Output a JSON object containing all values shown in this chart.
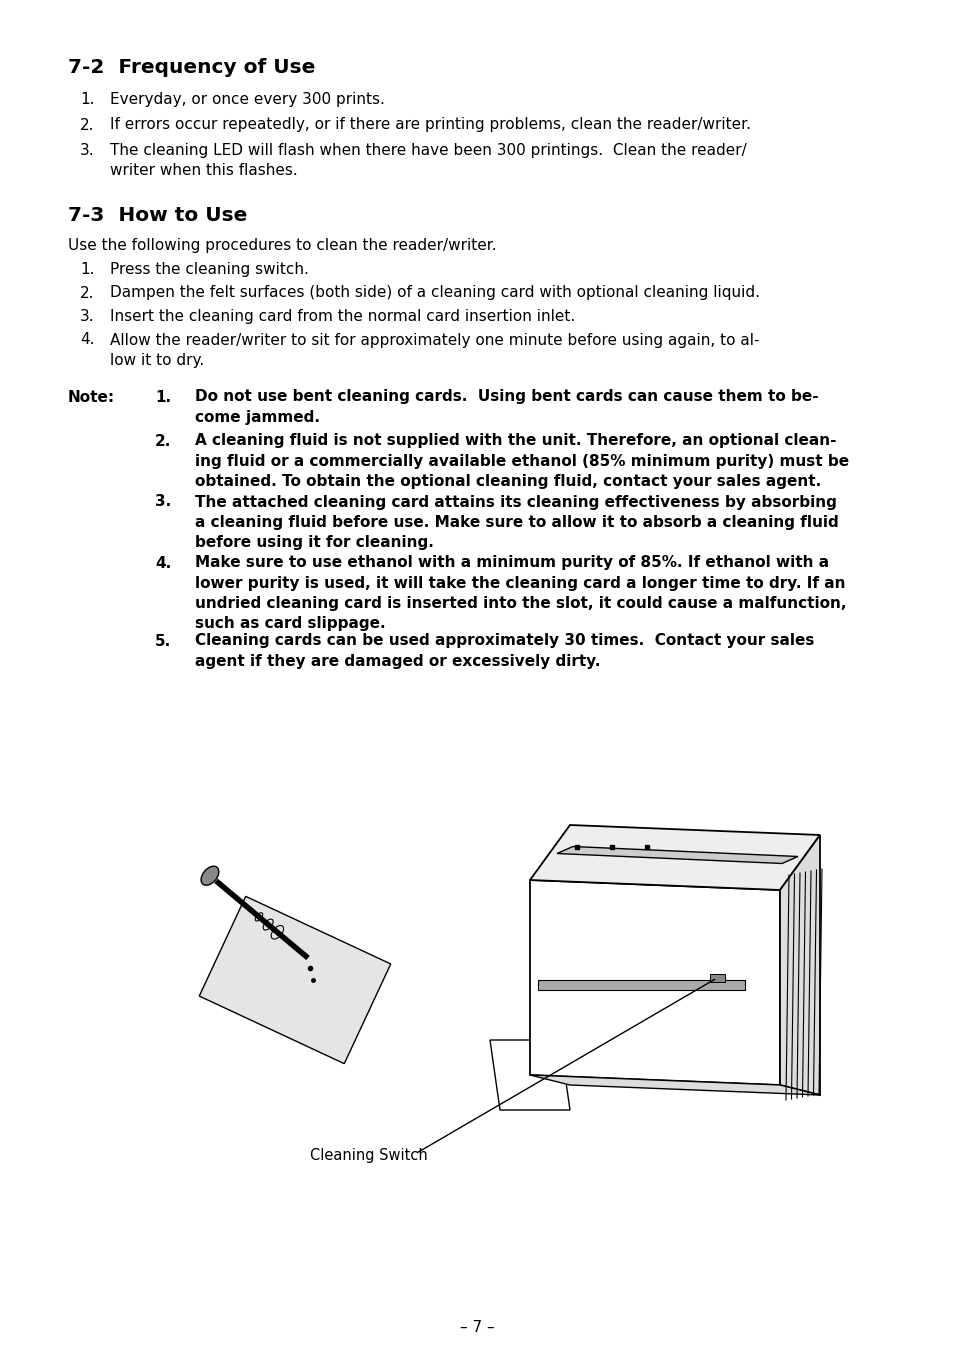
{
  "bg_color": "#ffffff",
  "page_number": "– 7 –",
  "section1_title": "7-2  Frequency of Use",
  "section1_items": [
    "Everyday, or once every 300 prints.",
    "If errors occur repeatedly, or if there are printing problems, clean the reader/writer.",
    "The cleaning LED will flash when there have been 300 printings.  Clean the reader/\nwriter when this flashes."
  ],
  "section2_title": "7-3  How to Use",
  "section2_intro": "Use the following procedures to clean the reader/writer.",
  "section2_items": [
    "Press the cleaning switch.",
    "Dampen the felt surfaces (both side) of a cleaning card with optional cleaning liquid.",
    "Insert the cleaning card from the normal card insertion inlet.",
    "Allow the reader/writer to sit for approximately one minute before using again, to al-\nlow it to dry."
  ],
  "note_label": "Note:",
  "note_items": [
    "Do not use bent cleaning cards.  Using bent cards can cause them to be-\ncome jammed.",
    "A cleaning fluid is not supplied with the unit. Therefore, an optional clean-\ning fluid or a commercially available ethanol (85% minimum purity) must be\nobtained. To obtain the optional cleaning fluid, contact your sales agent.",
    "The attached cleaning card attains its cleaning effectiveness by absorbing\na cleaning fluid before use. Make sure to allow it to absorb a cleaning fluid\nbefore using it for cleaning.",
    "Make sure to use ethanol with a minimum purity of 85%. If ethanol with a\nlower purity is used, it will take the cleaning card a longer time to dry. If an\nundried cleaning card is inserted into the slot, it could cause a malfunction,\nsuch as card slippage.",
    "Cleaning cards can be used approximately 30 times.  Contact your sales\nagent if they are damaged or excessively dirty."
  ],
  "caption": "Cleaning Switch"
}
